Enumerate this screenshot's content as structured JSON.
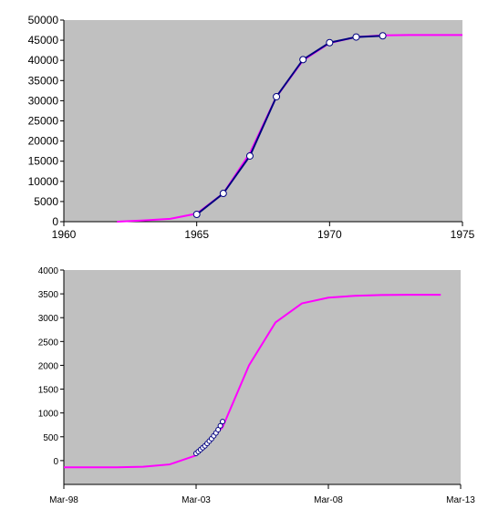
{
  "chart_data": [
    {
      "type": "line",
      "title": "",
      "xlabel": "",
      "ylabel": "",
      "xlim": [
        1960,
        1975
      ],
      "ylim": [
        0,
        50000
      ],
      "grid": false,
      "x_ticks": [
        "1960",
        "1965",
        "1970",
        "1975"
      ],
      "y_ticks": [
        "0",
        "5000",
        "10000",
        "15000",
        "20000",
        "25000",
        "30000",
        "35000",
        "40000",
        "45000",
        "50000"
      ],
      "colors": {
        "plot_background": "#c0c0c0",
        "fitted_curve": "#ff00ff",
        "observed_line": "#000080",
        "marker_fill": "#ffffff"
      },
      "series": [
        {
          "role": "fitted",
          "x": [
            1962,
            1963,
            1964,
            1965,
            1966,
            1967,
            1968,
            1969,
            1970,
            1971,
            1972,
            1973,
            1974,
            1975
          ],
          "y": [
            0,
            300,
            700,
            2000,
            7000,
            17000,
            31000,
            40000,
            44300,
            45800,
            46200,
            46300,
            46300,
            46300
          ]
        },
        {
          "role": "observed",
          "x": [
            1965,
            1966,
            1967,
            1968,
            1969,
            1970,
            1971,
            1972
          ],
          "y": [
            1800,
            7000,
            16300,
            31000,
            40200,
            44400,
            45800,
            46100
          ]
        }
      ]
    },
    {
      "type": "line",
      "title": "",
      "xlabel": "",
      "ylabel": "",
      "xlim": [
        "Mar-98",
        "Mar-13"
      ],
      "ylim": [
        -500,
        4000
      ],
      "grid": false,
      "x_ticks": [
        "Mar-98",
        "Mar-03",
        "Mar-08",
        "Mar-13"
      ],
      "y_ticks": [
        "0",
        "500",
        "1000",
        "1500",
        "2000",
        "2500",
        "3000",
        "3500",
        "4000"
      ],
      "colors": {
        "plot_background": "#c0c0c0",
        "fitted_curve": "#ff00ff",
        "marker_fill": "#ffffff",
        "marker_stroke": "#000080"
      },
      "series": [
        {
          "role": "fitted",
          "x": [
            "1998-03",
            "2000-03",
            "2001-03",
            "2002-03",
            "2003-03",
            "2004-03",
            "2005-03",
            "2006-03",
            "2007-03",
            "2008-03",
            "2009-03",
            "2010-03",
            "2011-03",
            "2012-06"
          ],
          "y": [
            -140,
            -140,
            -130,
            -80,
            110,
            700,
            2000,
            2900,
            3300,
            3420,
            3460,
            3475,
            3480,
            3480
          ]
        },
        {
          "role": "observed",
          "x": [
            "2003-03",
            "2003-04",
            "2003-05",
            "2003-06",
            "2003-07",
            "2003-08",
            "2003-09",
            "2003-10",
            "2003-11",
            "2003-12",
            "2004-01",
            "2004-02",
            "2004-03"
          ],
          "y": [
            150,
            190,
            230,
            270,
            310,
            360,
            410,
            460,
            520,
            580,
            650,
            730,
            820
          ]
        }
      ]
    }
  ]
}
